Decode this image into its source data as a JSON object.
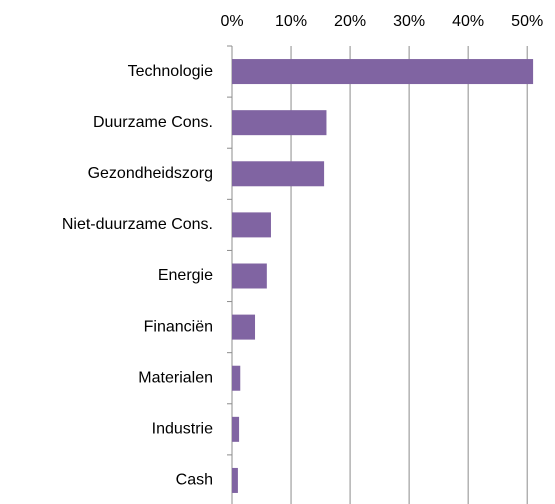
{
  "chart_data": {
    "type": "barh",
    "categories": [
      "Technologie",
      "Duurzame Cons.",
      "Gezondheidszorg",
      "Niet-duurzame Cons.",
      "Energie",
      "Financiën",
      "Materialen",
      "Industrie",
      "Cash"
    ],
    "values": [
      51,
      16,
      15.6,
      6.6,
      5.9,
      3.9,
      1.4,
      1.2,
      1.0
    ],
    "color": "#8064a2",
    "xlim": [
      0,
      52
    ],
    "xticks": [
      {
        "value": 0,
        "label": "0%"
      },
      {
        "value": 10,
        "label": "10%"
      },
      {
        "value": 20,
        "label": "20%"
      },
      {
        "value": 30,
        "label": "30%"
      },
      {
        "value": 40,
        "label": "40%"
      },
      {
        "value": 50,
        "label": "50%"
      }
    ],
    "grid": true
  }
}
